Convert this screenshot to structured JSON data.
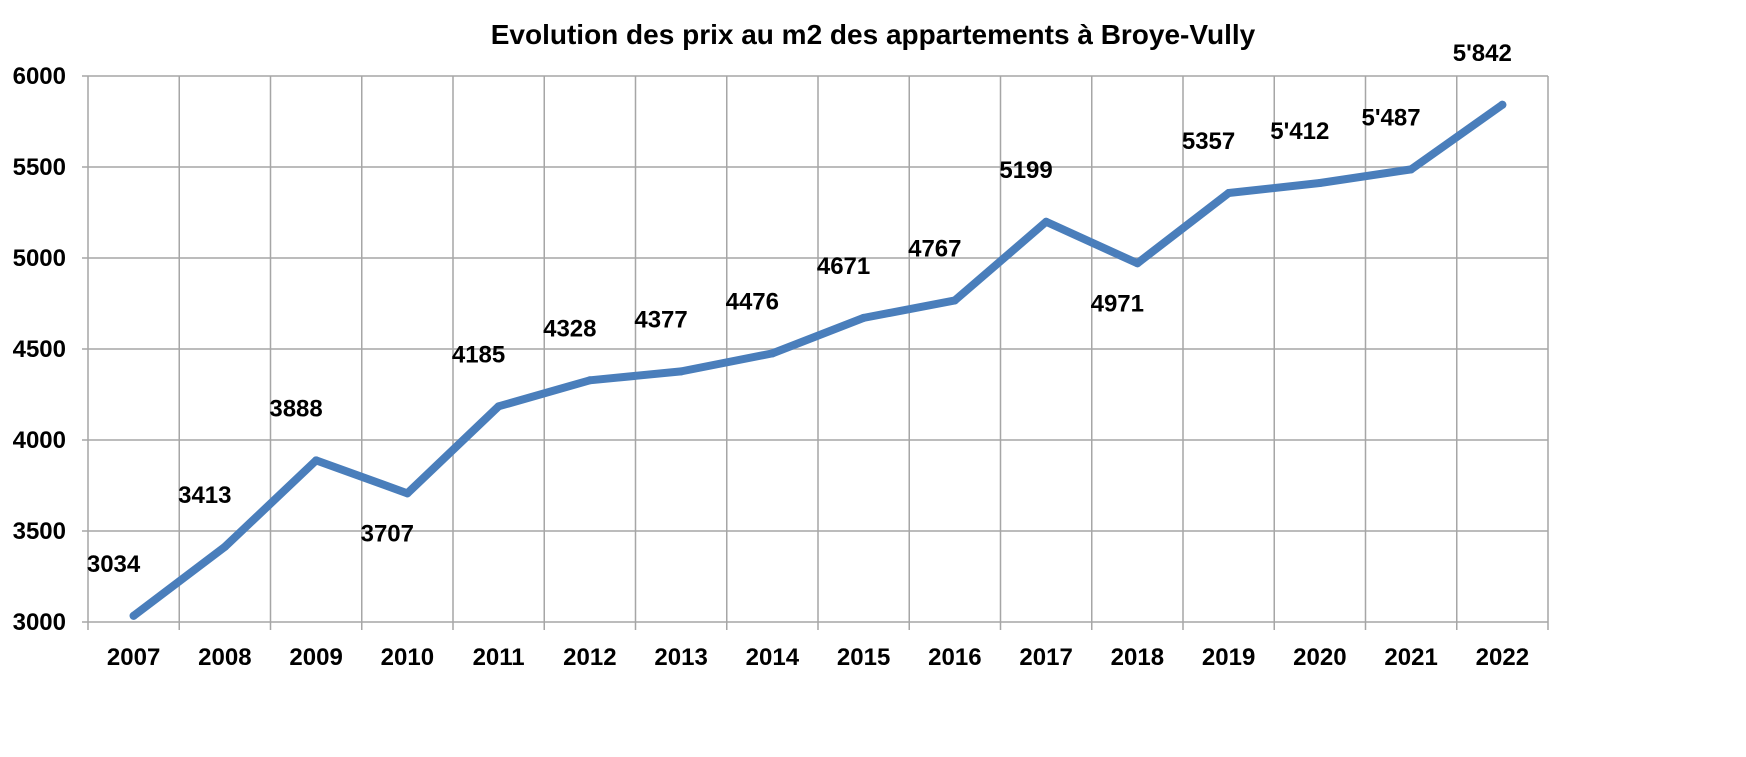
{
  "chart_data": {
    "type": "line",
    "title": "Evolution des prix au m2 des appartements à Broye-Vully",
    "xlabel": "",
    "ylabel": "",
    "x": [
      "2007",
      "2008",
      "2009",
      "2010",
      "2011",
      "2012",
      "2013",
      "2014",
      "2015",
      "2016",
      "2017",
      "2018",
      "2019",
      "2020",
      "2021",
      "2022"
    ],
    "series": [
      {
        "values": [
          3034,
          3413,
          3888,
          3707,
          4185,
          4328,
          4377,
          4476,
          4671,
          4767,
          5199,
          4971,
          5357,
          5412,
          5487,
          5842
        ],
        "labels": [
          "3034",
          "3413",
          "3888",
          "3707",
          "4185",
          "4328",
          "4377",
          "4476",
          "4671",
          "4767",
          "5199",
          "4971",
          "5357",
          "5'412",
          "5'487",
          "5'842"
        ],
        "label_positions": [
          "above",
          "above",
          "above",
          "below",
          "above",
          "above",
          "above",
          "above",
          "above",
          "above",
          "above",
          "below",
          "above",
          "above",
          "above",
          "above"
        ]
      }
    ],
    "ylim": [
      3000,
      6000
    ],
    "yticks": [
      "3000",
      "3500",
      "4000",
      "4500",
      "5000",
      "5500",
      "6000"
    ],
    "grid": true,
    "legend": "none",
    "line_color": "#4a7ebb",
    "grid_color": "#a6a6a6"
  }
}
